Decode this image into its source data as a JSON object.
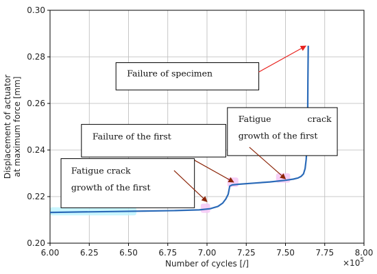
{
  "chart_data": {
    "type": "line",
    "title": "",
    "xlabel": "Number of cycles [/]",
    "ylabel_lines": [
      "Displacement of actuator",
      "at maximum force [mm]"
    ],
    "x_multiplier_label": "×10",
    "x_multiplier_exponent": "5",
    "xlim": [
      6.0,
      8.0
    ],
    "ylim": [
      0.2,
      0.3
    ],
    "x_ticks": [
      "6.00",
      "6.25",
      "6.50",
      "6.75",
      "7.00",
      "7.25",
      "7.50",
      "7.75",
      "8.00"
    ],
    "y_ticks": [
      "0.20",
      "0.22",
      "0.24",
      "0.26",
      "0.28",
      "0.30"
    ],
    "grid": true,
    "series": [
      {
        "color": "#2a6ab8",
        "x": [
          6.0,
          6.2,
          6.4,
          6.6,
          6.8,
          6.95,
          7.02,
          7.07,
          7.1,
          7.12,
          7.135,
          7.145,
          7.16,
          7.2,
          7.3,
          7.4,
          7.5,
          7.55,
          7.58,
          7.6,
          7.615,
          7.625,
          7.632,
          7.637,
          7.641,
          7.643,
          7.645
        ],
        "y": [
          0.2132,
          0.2134,
          0.2136,
          0.2138,
          0.214,
          0.2143,
          0.2148,
          0.2158,
          0.2172,
          0.219,
          0.221,
          0.2245,
          0.225,
          0.2253,
          0.2258,
          0.2263,
          0.227,
          0.2275,
          0.228,
          0.2287,
          0.2298,
          0.232,
          0.236,
          0.242,
          0.252,
          0.27,
          0.2848
        ]
      }
    ],
    "annotations": [
      {
        "lines": [
          "Failure of specimen"
        ],
        "box": {
          "x0": 6.42,
          "x1": 7.33,
          "y0": 0.2775,
          "y1": 0.2658
        },
        "text_x": [
          6.49
        ],
        "text_y": [
          0.2716
        ],
        "arrow_from": [
          7.33,
          0.2735
        ],
        "arrow_to": [
          7.63,
          0.2847
        ],
        "arrow_color": "#e8231f"
      },
      {
        "lines": [
          "Failure of the first"
        ],
        "box": {
          "x0": 6.2,
          "x1": 7.12,
          "y0": 0.251,
          "y1": 0.237
        },
        "text_x": [
          6.27
        ],
        "text_y": [
          0.2445
        ],
        "arrow_from": [
          6.905,
          0.2362
        ],
        "arrow_to": [
          7.17,
          0.2262
        ],
        "arrow_color": "#8b2508"
      },
      {
        "lines": [
          "Fatigue   crack",
          "growth of the first"
        ],
        "box": {
          "x0": 7.13,
          "x1": 7.83,
          "y0": 0.2582,
          "y1": 0.2376
        },
        "text_x": [
          7.2,
          7.2
        ],
        "text_y": [
          0.2521,
          0.2449
        ],
        "justify_first_line": [
          7.2,
          7.64
        ],
        "arrow_from": [
          7.27,
          0.2412
        ],
        "arrow_to": [
          7.5,
          0.2276
        ],
        "arrow_color": "#8b2508"
      },
      {
        "lines": [
          "Fatigue crack",
          "growth of the first"
        ],
        "box": {
          "x0": 6.07,
          "x1": 6.92,
          "y0": 0.2363,
          "y1": 0.2152
        },
        "text_x": [
          6.135,
          6.135
        ],
        "text_y": [
          0.2299,
          0.2227
        ],
        "arrow_from": [
          6.79,
          0.2312
        ],
        "arrow_to": [
          7.0,
          0.2178
        ],
        "arrow_color": "#8b2508"
      }
    ],
    "highlights": [
      {
        "color": "#bff4ff",
        "x0": 6.0,
        "x1": 6.55,
        "y": 0.2137,
        "h": 0.0035
      },
      {
        "color": "#f6c8f6",
        "x0": 6.96,
        "x1": 7.02,
        "y": 0.215,
        "h": 0.004
      },
      {
        "color": "#f6c8f6",
        "x0": 7.13,
        "x1": 7.2,
        "y": 0.2262,
        "h": 0.004
      },
      {
        "color": "#f6c8f6",
        "x0": 7.44,
        "x1": 7.53,
        "y": 0.228,
        "h": 0.004
      }
    ]
  }
}
